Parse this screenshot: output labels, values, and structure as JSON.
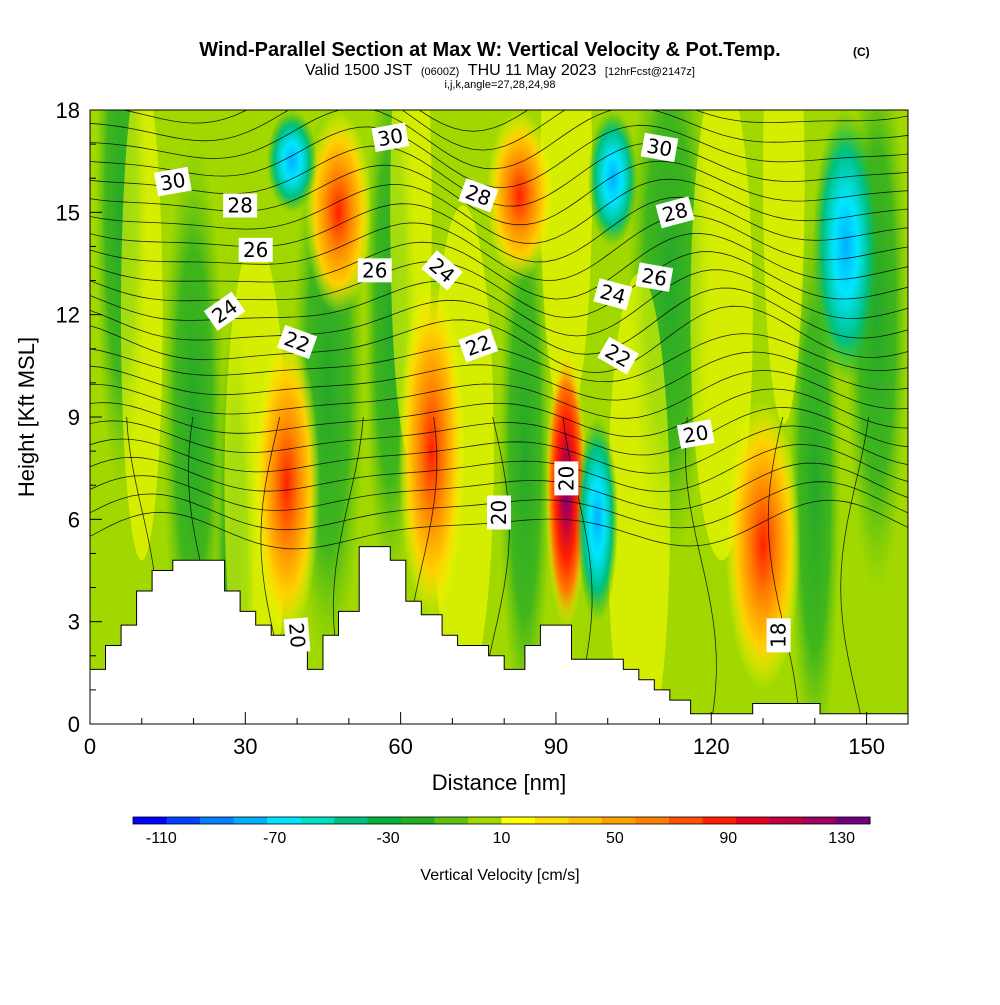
{
  "titles": {
    "main": "Wind-Parallel Section at Max W: Vertical Velocity & Pot.Temp.",
    "copyright_mark": "(C)",
    "valid_prefix": "Valid 1500 JST",
    "valid_utc": "(0600Z)",
    "valid_date": "THU 11 May 2023",
    "forecast": "[12hrFcst@2147z]",
    "indices": "i,j,k,angle=27,28,24,98"
  },
  "chart_data": {
    "type": "heatmap",
    "xlabel": "Distance [nm]",
    "ylabel": "Height [Kft MSL]",
    "xlim": [
      0,
      158
    ],
    "ylim": [
      0,
      18
    ],
    "x_ticks": [
      0,
      30,
      60,
      90,
      120,
      150
    ],
    "y_ticks": [
      0,
      3,
      6,
      9,
      12,
      15,
      18
    ],
    "colorbar": {
      "title": "Vertical Velocity [cm/s]",
      "min": -120,
      "max": 140,
      "step": 10,
      "tick_labels": [
        "-110",
        "-70",
        "-30",
        "10",
        "50",
        "90",
        "130"
      ],
      "colors": [
        "#0000ff",
        "#0040ff",
        "#0080ff",
        "#00b0ff",
        "#00e6ff",
        "#00e0c0",
        "#00c080",
        "#00b040",
        "#20b020",
        "#60c010",
        "#a0d800",
        "#ffff00",
        "#ffe000",
        "#ffc000",
        "#ffa000",
        "#ff8000",
        "#ff5000",
        "#ff2000",
        "#e00020",
        "#c00040",
        "#a00060",
        "#700080"
      ]
    },
    "terrain_kft": [
      [
        0,
        1.6
      ],
      [
        1,
        1.6
      ],
      [
        3,
        1.6
      ],
      [
        3,
        2.3
      ],
      [
        6,
        2.3
      ],
      [
        6,
        2.9
      ],
      [
        9,
        2.9
      ],
      [
        9,
        3.9
      ],
      [
        12,
        3.9
      ],
      [
        12,
        4.5
      ],
      [
        16,
        4.5
      ],
      [
        16,
        4.8
      ],
      [
        26,
        4.8
      ],
      [
        26,
        3.9
      ],
      [
        29,
        3.9
      ],
      [
        29,
        3.3
      ],
      [
        32,
        3.3
      ],
      [
        32,
        2.9
      ],
      [
        35,
        2.9
      ],
      [
        35,
        2.6
      ],
      [
        42,
        2.6
      ],
      [
        42,
        1.6
      ],
      [
        45,
        1.6
      ],
      [
        45,
        2.6
      ],
      [
        48,
        2.6
      ],
      [
        48,
        3.3
      ],
      [
        52,
        3.3
      ],
      [
        52,
        5.2
      ],
      [
        58,
        5.2
      ],
      [
        58,
        4.8
      ],
      [
        61,
        4.8
      ],
      [
        61,
        3.6
      ],
      [
        64,
        3.6
      ],
      [
        64,
        3.2
      ],
      [
        68,
        3.2
      ],
      [
        68,
        2.6
      ],
      [
        71,
        2.6
      ],
      [
        71,
        2.3
      ],
      [
        77,
        2.3
      ],
      [
        77,
        2.0
      ],
      [
        80,
        2.0
      ],
      [
        80,
        1.6
      ],
      [
        84,
        1.6
      ],
      [
        84,
        2.3
      ],
      [
        87,
        2.3
      ],
      [
        87,
        2.9
      ],
      [
        93,
        2.9
      ],
      [
        93,
        1.9
      ],
      [
        103,
        1.9
      ],
      [
        103,
        1.6
      ],
      [
        106,
        1.6
      ],
      [
        106,
        1.3
      ],
      [
        109,
        1.3
      ],
      [
        109,
        1.0
      ],
      [
        112,
        1.0
      ],
      [
        112,
        0.7
      ],
      [
        116,
        0.7
      ],
      [
        116,
        0.3
      ],
      [
        128,
        0.3
      ],
      [
        128,
        0.6
      ],
      [
        141,
        0.6
      ],
      [
        141,
        0.3
      ],
      [
        158,
        0.3
      ]
    ],
    "updraft_bands": [
      {
        "x": 38,
        "w": 4,
        "y0": 2.5,
        "y1": 11.5,
        "w_cms": 70
      },
      {
        "x": 66,
        "w": 4,
        "y0": 3,
        "y1": 13,
        "w_cms": 60
      },
      {
        "x": 92,
        "w": 2.5,
        "y0": 2.8,
        "y1": 11,
        "w_cms": 140
      },
      {
        "x": 130,
        "w": 4.5,
        "y0": 1,
        "y1": 9.5,
        "w_cms": 90
      },
      {
        "x": 48,
        "w": 4,
        "y0": 12,
        "y1": 18,
        "w_cms": 70
      },
      {
        "x": 83,
        "w": 4,
        "y0": 13,
        "y1": 18,
        "w_cms": 70
      }
    ],
    "downdraft_bands": [
      {
        "x": 98,
        "w": 2.5,
        "y0": 3,
        "y1": 9,
        "w_cms": -80
      },
      {
        "x": 39,
        "w": 3,
        "y0": 15,
        "y1": 18,
        "w_cms": -90
      },
      {
        "x": 146,
        "w": 4,
        "y0": 10,
        "y1": 18,
        "w_cms": -70
      },
      {
        "x": 101,
        "w": 3,
        "y0": 14,
        "y1": 18,
        "w_cms": -70
      }
    ],
    "contour_labels": [
      {
        "text": "30",
        "x": 16,
        "y": 15.9,
        "rot": -10
      },
      {
        "text": "28",
        "x": 29,
        "y": 15.2,
        "rot": 0
      },
      {
        "text": "26",
        "x": 32,
        "y": 13.9,
        "rot": 0
      },
      {
        "text": "24",
        "x": 26,
        "y": 12.1,
        "rot": -35
      },
      {
        "text": "22",
        "x": 40,
        "y": 11.2,
        "rot": 20
      },
      {
        "text": "20",
        "x": 40,
        "y": 2.6,
        "rot": 85
      },
      {
        "text": "30",
        "x": 58,
        "y": 17.2,
        "rot": -10
      },
      {
        "text": "26",
        "x": 55,
        "y": 13.3,
        "rot": 0
      },
      {
        "text": "24",
        "x": 68,
        "y": 13.3,
        "rot": 40
      },
      {
        "text": "28",
        "x": 75,
        "y": 15.5,
        "rot": 20
      },
      {
        "text": "22",
        "x": 75,
        "y": 11.1,
        "rot": -20
      },
      {
        "text": "20",
        "x": 79,
        "y": 6.2,
        "rot": -90
      },
      {
        "text": "20",
        "x": 92,
        "y": 7.2,
        "rot": -90
      },
      {
        "text": "30",
        "x": 110,
        "y": 16.9,
        "rot": 10
      },
      {
        "text": "28",
        "x": 113,
        "y": 15.0,
        "rot": -15
      },
      {
        "text": "26",
        "x": 109,
        "y": 13.1,
        "rot": 10
      },
      {
        "text": "24",
        "x": 101,
        "y": 12.6,
        "rot": 15
      },
      {
        "text": "22",
        "x": 102,
        "y": 10.8,
        "rot": 30
      },
      {
        "text": "20",
        "x": 117,
        "y": 8.5,
        "rot": -10
      },
      {
        "text": "18",
        "x": 133,
        "y": 2.6,
        "rot": -90
      }
    ]
  }
}
